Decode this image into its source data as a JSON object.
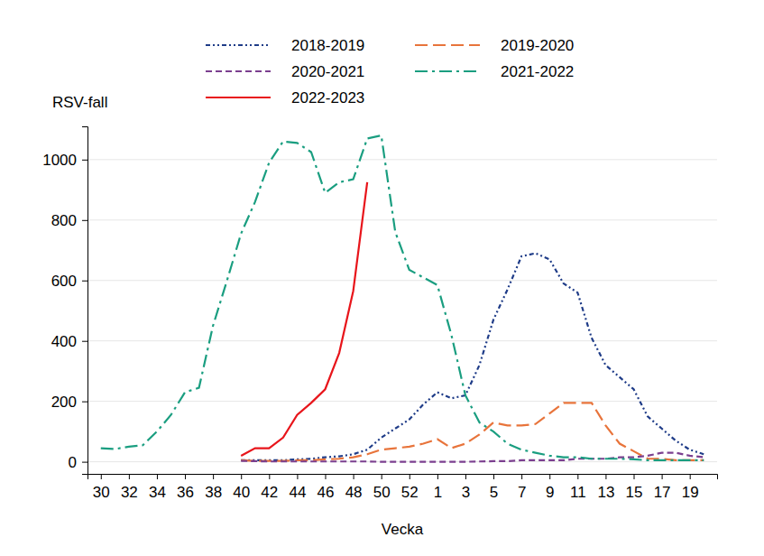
{
  "chart_data": {
    "type": "line",
    "y_label": "RSV-fall",
    "x_label": "Vecka",
    "categories": [
      30,
      null,
      32,
      null,
      34,
      null,
      36,
      null,
      38,
      null,
      40,
      null,
      42,
      null,
      44,
      null,
      46,
      null,
      48,
      null,
      50,
      null,
      52,
      null,
      1,
      null,
      3,
      null,
      5,
      null,
      7,
      null,
      9,
      null,
      11,
      null,
      13,
      null,
      15,
      null,
      17,
      null,
      19,
      null
    ],
    "ylim": [
      -40,
      1110
    ],
    "yticks": [
      0,
      200,
      400,
      600,
      800,
      1000
    ],
    "grid": true,
    "legend": "top",
    "series": [
      {
        "name": "2018-2019",
        "color": "#1f3c88",
        "line_style": "dashdotdot",
        "values": [
          null,
          null,
          null,
          null,
          null,
          null,
          null,
          null,
          null,
          null,
          5,
          5,
          5,
          5,
          8,
          10,
          15,
          18,
          25,
          40,
          80,
          110,
          140,
          190,
          230,
          210,
          220,
          320,
          470,
          570,
          680,
          690,
          670,
          590,
          560,
          410,
          320,
          280,
          240,
          150,
          110,
          70,
          40,
          25
        ]
      },
      {
        "name": "2019-2020",
        "color": "#e8743b",
        "line_style": "longdash",
        "values": [
          null,
          null,
          null,
          null,
          null,
          null,
          null,
          null,
          null,
          null,
          5,
          3,
          3,
          3,
          5,
          5,
          8,
          10,
          15,
          25,
          40,
          45,
          50,
          60,
          75,
          45,
          60,
          90,
          130,
          120,
          120,
          125,
          160,
          195,
          195,
          195,
          120,
          60,
          35,
          10,
          10,
          5,
          5,
          5
        ]
      },
      {
        "name": "2020-2021",
        "color": "#7b3f8f",
        "line_style": "dashed",
        "values": [
          null,
          null,
          null,
          null,
          null,
          null,
          null,
          null,
          null,
          null,
          3,
          2,
          1,
          1,
          1,
          1,
          1,
          1,
          1,
          1,
          0,
          0,
          0,
          0,
          0,
          0,
          0,
          1,
          2,
          2,
          5,
          5,
          5,
          5,
          10,
          10,
          10,
          15,
          15,
          20,
          30,
          30,
          20,
          15
        ]
      },
      {
        "name": "2021-2022",
        "color": "#1a9e80",
        "line_style": "dashdot",
        "values": [
          45,
          42,
          50,
          55,
          100,
          155,
          230,
          245,
          450,
          600,
          755,
          860,
          990,
          1060,
          1055,
          1025,
          890,
          925,
          935,
          1070,
          1080,
          760,
          635,
          610,
          585,
          420,
          220,
          130,
          100,
          60,
          40,
          30,
          20,
          15,
          15,
          10,
          10,
          10,
          8,
          5,
          5,
          5,
          5,
          5
        ]
      },
      {
        "name": "2022-2023",
        "color": "#e8151b",
        "line_style": "solid",
        "values": [
          null,
          null,
          null,
          null,
          null,
          null,
          null,
          null,
          null,
          null,
          20,
          45,
          45,
          80,
          155,
          195,
          240,
          360,
          565,
          925,
          null,
          null,
          null,
          null,
          null,
          null,
          null,
          null,
          null,
          null,
          null,
          null,
          null,
          null,
          null,
          null,
          null,
          null,
          null,
          null,
          null,
          null,
          null,
          null
        ]
      }
    ]
  }
}
